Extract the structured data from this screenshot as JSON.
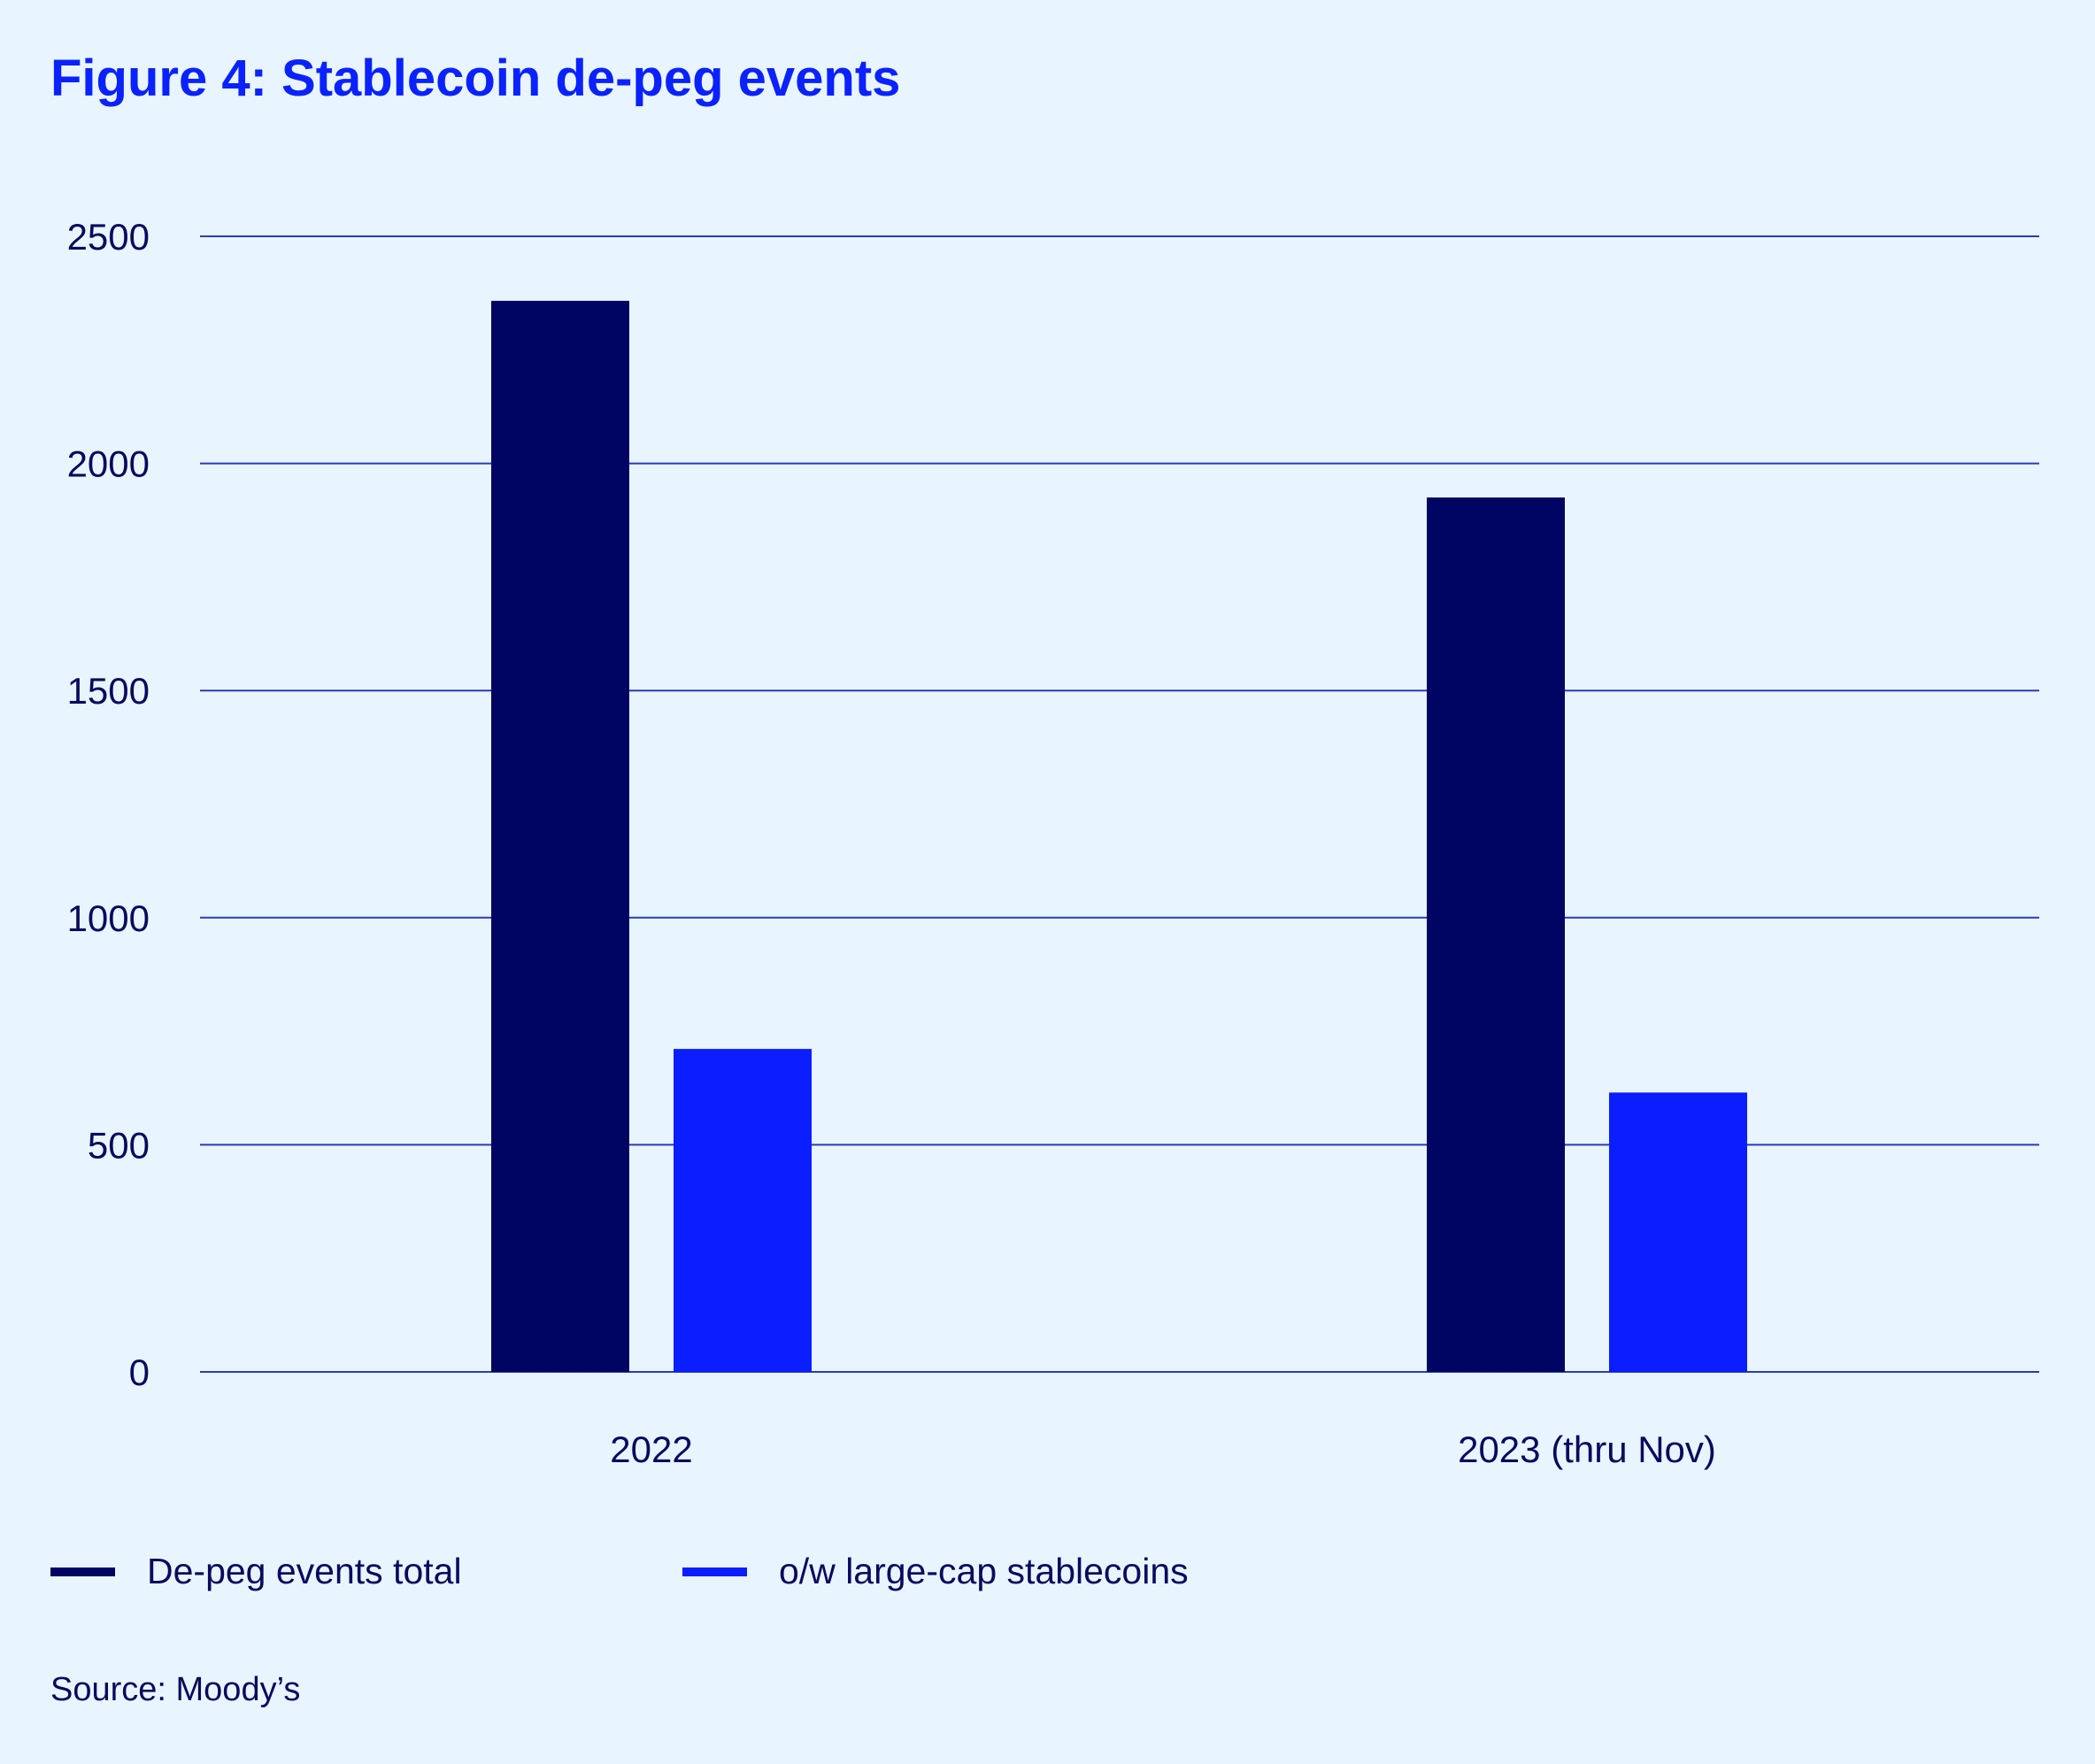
{
  "chart_data": {
    "type": "bar",
    "title": "Figure 4: Stablecoin de-peg events",
    "categories": [
      "2022",
      "2023 (thru Nov)"
    ],
    "series": [
      {
        "name": "De-peg events total",
        "values": [
          2358,
          1925
        ],
        "color": "#000563"
      },
      {
        "name": "o/w large-cap stablecoins",
        "values": [
          711,
          615
        ],
        "color": "#0a1eff"
      }
    ],
    "ylim": [
      0,
      2500
    ],
    "yticks": [
      0,
      500,
      1000,
      1500,
      2000,
      2500
    ],
    "grid": true,
    "legend_position": "bottom-left",
    "xlabel": "",
    "ylabel": ""
  },
  "source": "Source: Moody’s",
  "colors": {
    "background": "#e9f5fe",
    "title": "#0a22ff",
    "gridline": "#2a3bb8",
    "text": "#0a0a5e"
  }
}
